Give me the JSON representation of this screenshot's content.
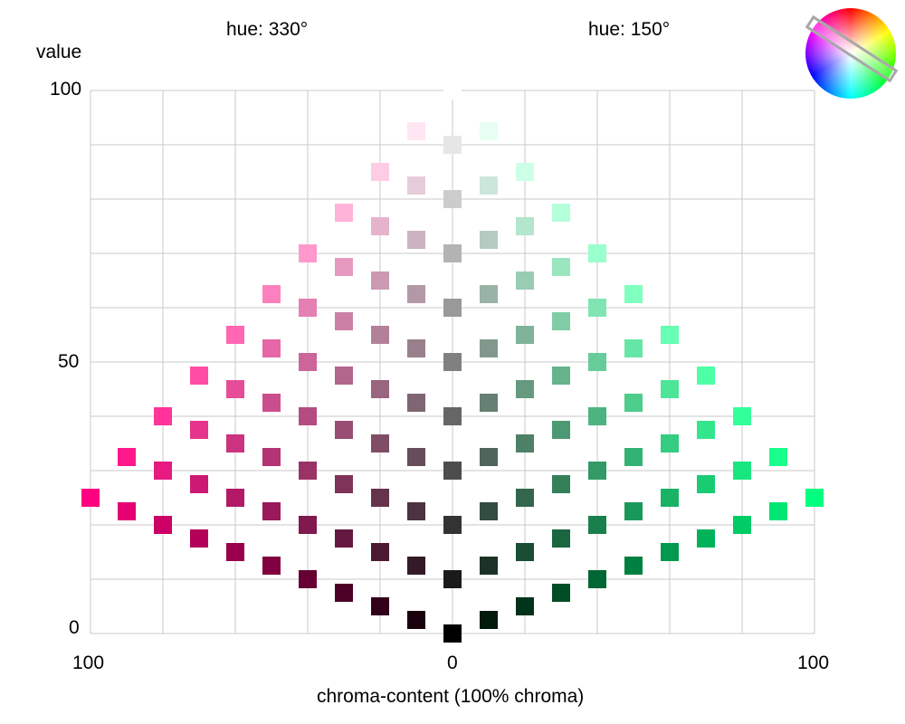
{
  "chart_data": {
    "type": "scatter",
    "title": "",
    "hue_labels": {
      "left": "hue: 330°",
      "right": "hue: 150°"
    },
    "ylabel": "value",
    "xlabel": "chroma-content (100% chroma)",
    "y_ticks": [
      "100",
      "50",
      "0"
    ],
    "x_ticks": [
      "100",
      "0",
      "100"
    ],
    "ylim": [
      0,
      100
    ],
    "xlim": [
      -100,
      100
    ],
    "grid": true,
    "legend": "hue wheel top-right, hues 330 and 150 selected",
    "hues": [
      330,
      150
    ],
    "series": [
      {
        "hue": 330,
        "side": "left",
        "description": "grid of swatches: chroma steps 0-100 by 10 (x), value steps 0-100 by 10 at zero chroma",
        "chroma_levels": [
          0,
          10,
          20,
          30,
          40,
          50,
          60,
          70,
          80,
          90,
          100
        ],
        "value_levels": [
          0,
          10,
          20,
          30,
          40,
          50,
          60,
          70,
          80,
          90,
          100
        ]
      },
      {
        "hue": 150,
        "side": "right",
        "chroma_levels": [
          0,
          10,
          20,
          30,
          40,
          50,
          60,
          70,
          80,
          90,
          100
        ],
        "value_levels": [
          0,
          10,
          20,
          30,
          40,
          50,
          60,
          70,
          80,
          90,
          100
        ]
      }
    ]
  },
  "wheel": {
    "name": "hue wheel"
  }
}
